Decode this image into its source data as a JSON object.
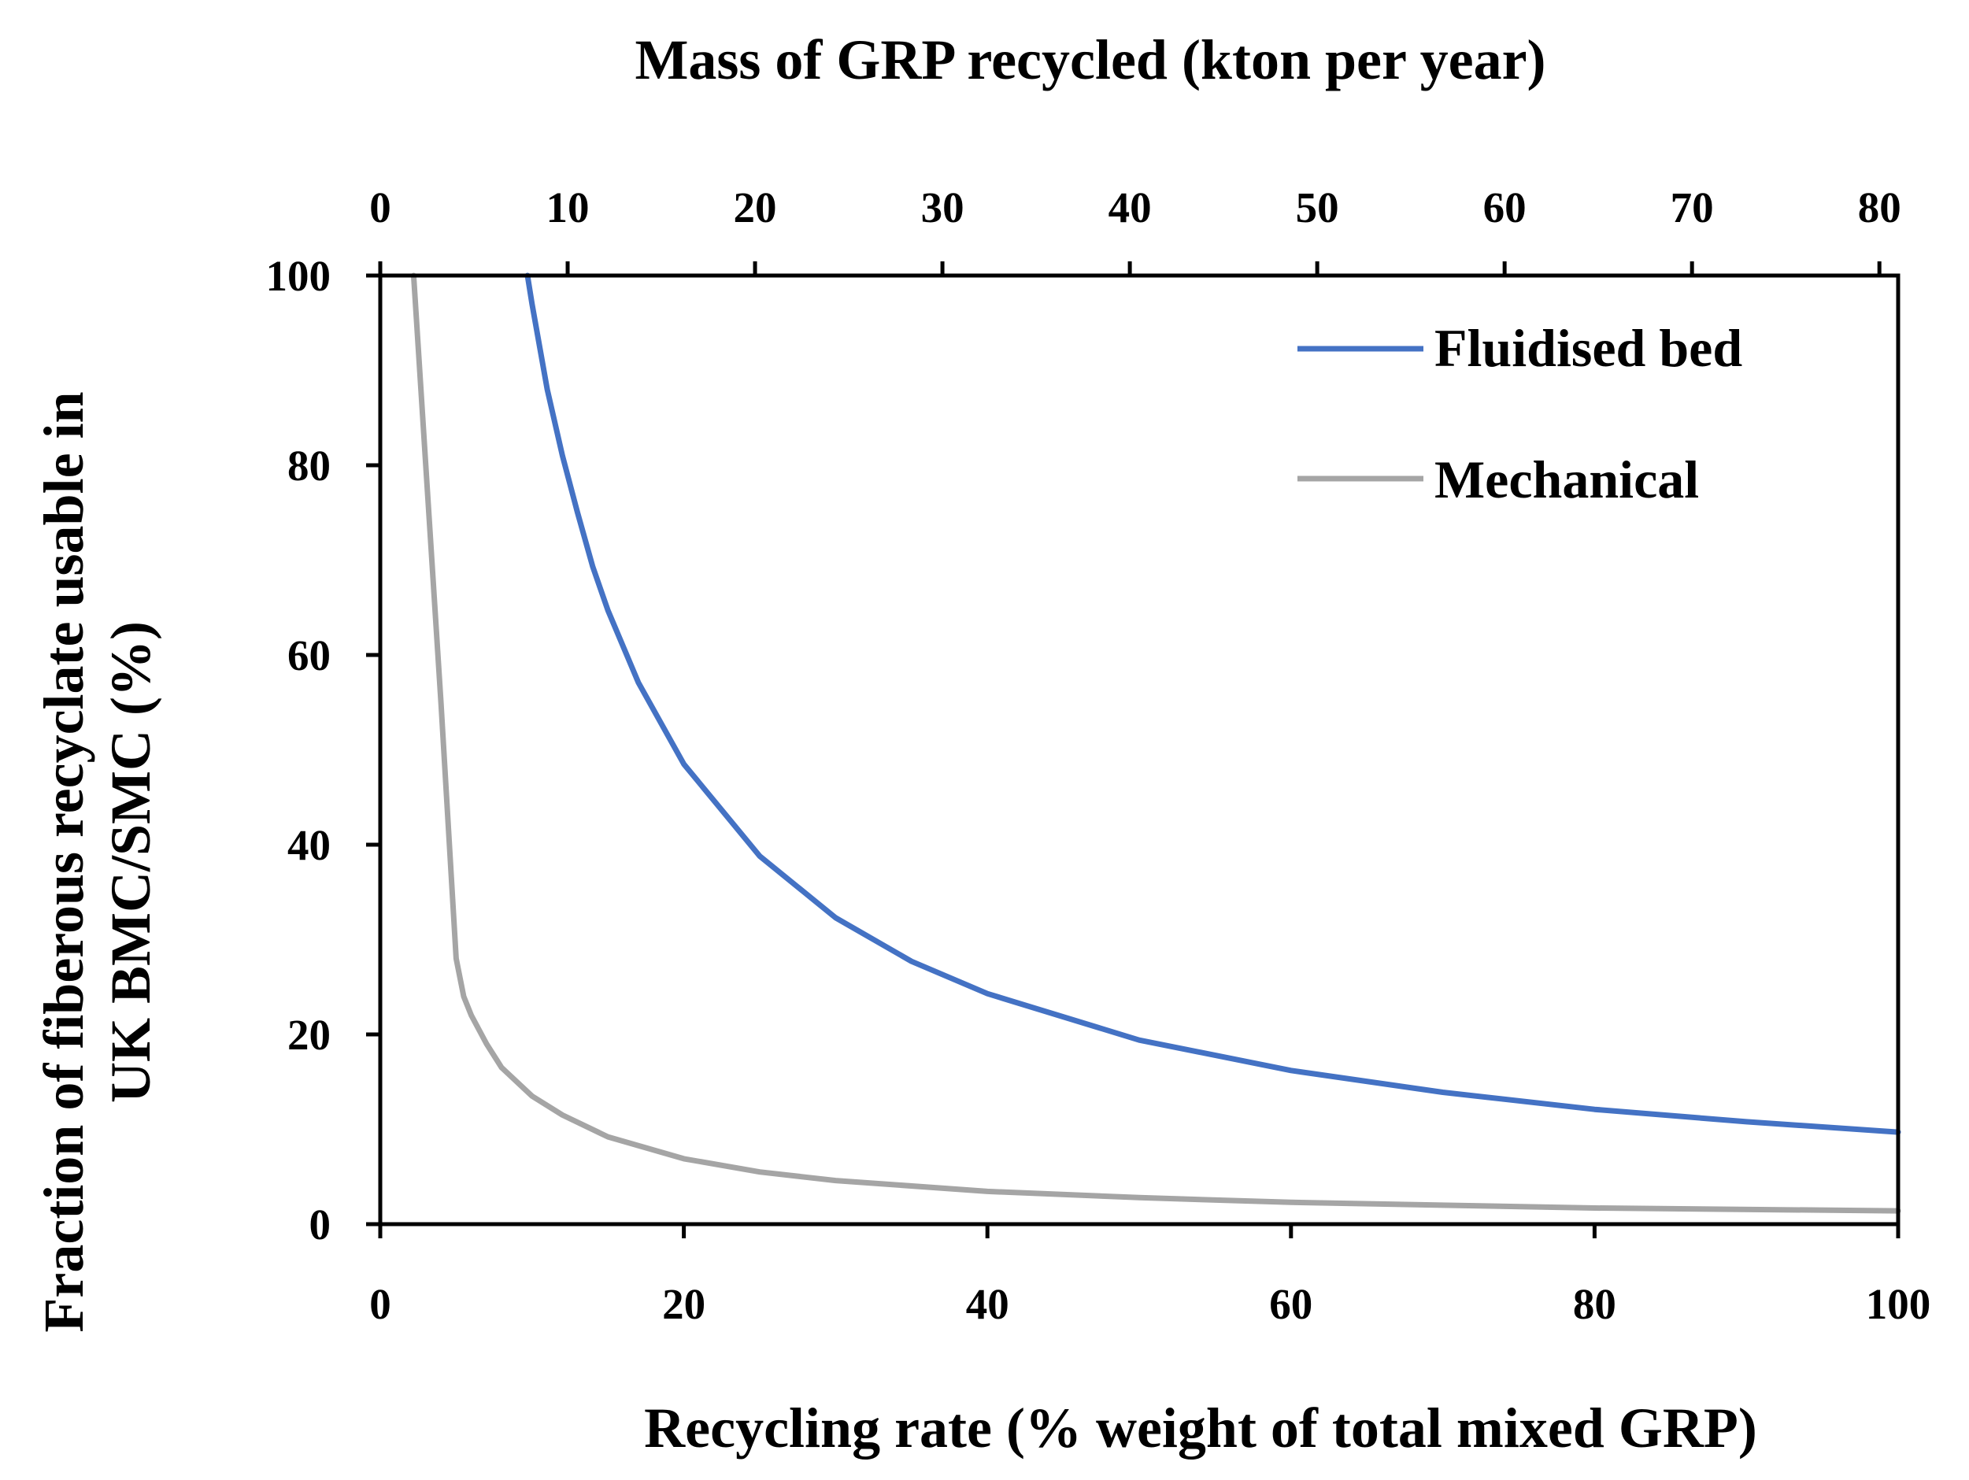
{
  "chart_data": {
    "type": "line",
    "top_axis": {
      "title": "Mass of GRP recycled (kton per year)",
      "range": [
        0,
        81
      ],
      "ticks": [
        "0",
        "10",
        "20",
        "30",
        "40",
        "50",
        "60",
        "70",
        "80"
      ],
      "tick_values": [
        0,
        10,
        20,
        30,
        40,
        50,
        60,
        70,
        80
      ]
    },
    "x_axis": {
      "title": "Recycling rate (% weight of total mixed GRP)",
      "range": [
        0,
        100
      ],
      "ticks": [
        "0",
        "20",
        "40",
        "60",
        "80",
        "100"
      ],
      "tick_values": [
        0,
        20,
        40,
        60,
        80,
        100
      ]
    },
    "y_axis": {
      "title_lines": [
        "Fraction of fiberous recyclate usable in",
        "UK BMC/SMC (%)"
      ],
      "range": [
        0,
        100
      ],
      "ticks": [
        "0",
        "20",
        "40",
        "60",
        "80",
        "100"
      ],
      "tick_values": [
        0,
        20,
        40,
        60,
        80,
        100
      ]
    },
    "grid": false,
    "legend_position": "top-right",
    "series": [
      {
        "name": "Fluidised bed",
        "color": "#4472C4",
        "x": [
          9.7,
          10,
          11,
          12,
          13,
          14,
          15,
          17,
          20,
          25,
          30,
          35,
          40,
          50,
          60,
          70,
          80,
          90,
          100
        ],
        "y": [
          100,
          97,
          88,
          81,
          75,
          69.3,
          64.7,
          57.1,
          48.5,
          38.8,
          32.3,
          27.7,
          24.3,
          19.4,
          16.2,
          13.9,
          12.1,
          10.8,
          9.7
        ]
      },
      {
        "name": "Mechanical",
        "color": "#A5A5A5",
        "x": [
          2.2,
          3,
          4,
          5,
          5.5,
          6,
          7,
          8,
          10,
          12,
          15,
          20,
          25,
          30,
          40,
          50,
          60,
          80,
          100
        ],
        "y": [
          100,
          80,
          55,
          28,
          24,
          22,
          19,
          16.5,
          13.5,
          11.5,
          9.2,
          6.9,
          5.5,
          4.6,
          3.45,
          2.8,
          2.3,
          1.7,
          1.4
        ]
      }
    ]
  }
}
